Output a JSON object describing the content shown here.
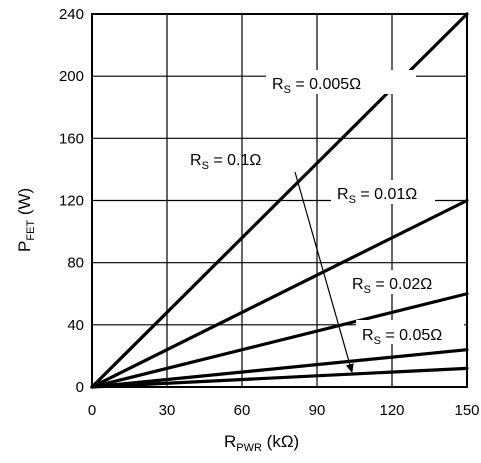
{
  "chart_data": {
    "type": "line",
    "xlabel": {
      "main": "R",
      "sub": "PWR",
      "unit": " (kΩ)"
    },
    "ylabel": {
      "main": "P",
      "sub": "FET",
      "unit": "  (W)"
    },
    "xlim": [
      0,
      150
    ],
    "ylim": [
      0,
      240
    ],
    "xticks": [
      0,
      30,
      60,
      90,
      120,
      150
    ],
    "yticks": [
      0,
      40,
      80,
      120,
      160,
      200,
      240
    ],
    "grid": true,
    "series": [
      {
        "label": {
          "main": "R",
          "sub": "S",
          "value": " = 0.005Ω"
        },
        "x": [
          0,
          150
        ],
        "y": [
          0,
          240
        ]
      },
      {
        "label": {
          "main": "R",
          "sub": "S",
          "value": " = 0.01Ω"
        },
        "x": [
          0,
          150
        ],
        "y": [
          0,
          120
        ]
      },
      {
        "label": {
          "main": "R",
          "sub": "S",
          "value": " = 0.02Ω"
        },
        "x": [
          0,
          150
        ],
        "y": [
          0,
          60
        ]
      },
      {
        "label": {
          "main": "R",
          "sub": "S",
          "value": " = 0.05Ω"
        },
        "x": [
          0,
          150
        ],
        "y": [
          0,
          24
        ]
      },
      {
        "label": {
          "main": "R",
          "sub": "S",
          "value": " = 0.1Ω"
        },
        "x": [
          0,
          150
        ],
        "y": [
          0,
          12
        ]
      }
    ]
  }
}
